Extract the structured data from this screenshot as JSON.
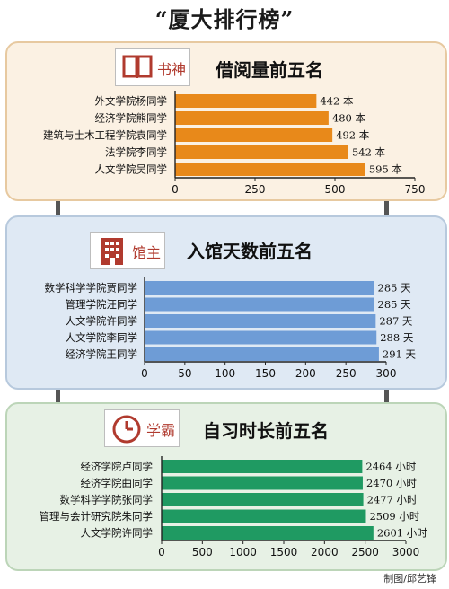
{
  "title": "“厦大排行榜”",
  "credit": "制图/邱艺锋",
  "chart_data": [
    {
      "type": "bar",
      "orientation": "horizontal",
      "badge": "书神",
      "title": "借阅量前五名",
      "unit": "本",
      "color": "#e8891a",
      "categories": [
        "外文学院杨同学",
        "经济学院熊同学",
        "建筑与土木工程学院袁同学",
        "法学院李同学",
        "人文学院吴同学"
      ],
      "values": [
        442,
        480,
        492,
        542,
        595
      ],
      "xlim": [
        0,
        750
      ],
      "ticks": [
        0,
        250,
        500,
        750
      ]
    },
    {
      "type": "bar",
      "orientation": "horizontal",
      "badge": "馆主",
      "title": "入馆天数前五名",
      "unit": "天",
      "color": "#6e9cd6",
      "categories": [
        "数学科学学院贾同学",
        "管理学院汪同学",
        "人文学院许同学",
        "人文学院李同学",
        "经济学院王同学"
      ],
      "values": [
        285,
        285,
        287,
        288,
        291
      ],
      "xlim": [
        0,
        300
      ],
      "ticks": [
        0,
        50,
        100,
        150,
        200,
        250,
        300
      ]
    },
    {
      "type": "bar",
      "orientation": "horizontal",
      "badge": "学霸",
      "title": "自习时长前五名",
      "unit": "小时",
      "color": "#1f9a62",
      "categories": [
        "经济学院卢同学",
        "经济学院曲同学",
        "数学科学学院张同学",
        "管理与会计研究院朱同学",
        "人文学院许同学"
      ],
      "values": [
        2464,
        2470,
        2477,
        2509,
        2601
      ],
      "xlim": [
        0,
        3000
      ],
      "ticks": [
        0,
        500,
        1000,
        1500,
        2000,
        2500,
        3000
      ]
    }
  ]
}
